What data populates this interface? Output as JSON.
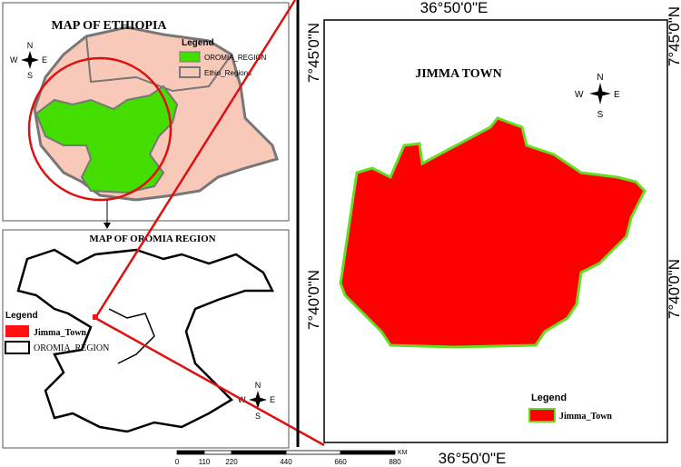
{
  "ethiopia_map": {
    "title": "MAP OF ETHIOPIA",
    "legend": {
      "title": "Legend",
      "items": [
        "OROMIA_REGION",
        "Ethio_Regions"
      ]
    }
  },
  "oromia_map": {
    "title": "MAP OF OROMIA REGION",
    "legend": {
      "title": "Legend",
      "items": [
        "Jimma_Town",
        "OROMIA_REGION"
      ]
    }
  },
  "jimma_map": {
    "title": "JIMMA TOWN",
    "legend": {
      "title": "Legend",
      "items": [
        "Jimma_Town"
      ]
    },
    "longitude_label": "36°50'0\"E",
    "latitude_labels": [
      "7°45'0\"N",
      "7°40'0\"N"
    ]
  },
  "compass": {
    "n": "N",
    "s": "S",
    "e": "E",
    "w": "W"
  },
  "scale_bar": {
    "unit": "KM",
    "ticks": [
      0,
      110,
      220,
      440,
      660,
      880
    ]
  }
}
